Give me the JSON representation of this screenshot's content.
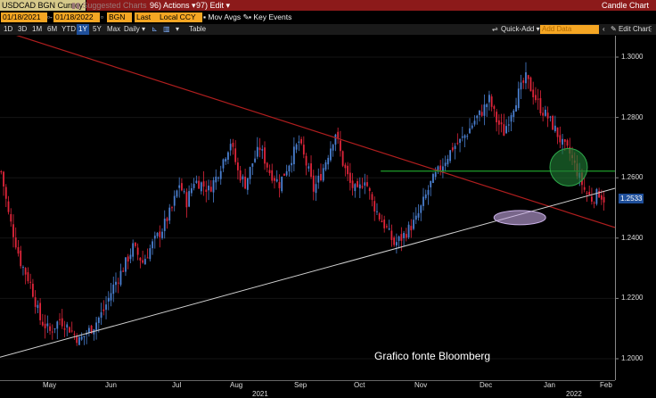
{
  "toolbar": {
    "ticker": "USDCAD BGN Curncy",
    "suggested": "Suggested Charts",
    "actions": "96) Actions ▾",
    "edit": "97) Edit ▾",
    "chart_type": "Candle Chart"
  },
  "controls": {
    "start_date": "01/18/2021",
    "end_date": "01/18/2022",
    "source": "BGN",
    "field": "Last Px",
    "currency": "Local CCY",
    "mov_avgs": "Mov Avgs",
    "key_events": "Key Events"
  },
  "periods": [
    "1D",
    "3D",
    "1M",
    "6M",
    "YTD",
    "1Y",
    "5Y",
    "Max"
  ],
  "period_selected": "1Y",
  "frequency": "Daily ▾",
  "table_label": "Table",
  "quick_add": "Quick-Add ▾",
  "add_data_placeholder": "Add Data",
  "edit_chart": "Edit Chart",
  "credit": "Grafico fonte Bloomberg",
  "colors": {
    "up": "#4a7fd0",
    "down": "#e0253a",
    "resistance": "#b01e1e",
    "support": "#cfcfcf",
    "level": "#1e9e2a"
  },
  "chart_data": {
    "type": "candlestick",
    "x_tick_labels": [
      "May",
      "Jun",
      "Jul",
      "Aug",
      "Sep",
      "Oct",
      "Nov",
      "Dec",
      "Jan",
      "Feb"
    ],
    "year_labels": [
      "2021",
      "2022"
    ],
    "y_ticks": [
      "1.3000",
      "1.2800",
      "1.2600",
      "1.2400",
      "1.2200",
      "1.2000"
    ],
    "ylim": [
      1.1995,
      1.3045
    ],
    "last_price": "1.2533",
    "close_path": [
      [
        0,
        1.262
      ],
      [
        3,
        1.248
      ],
      [
        8,
        1.232
      ],
      [
        12,
        1.225
      ],
      [
        16,
        1.213
      ],
      [
        20,
        1.209
      ],
      [
        24,
        1.213
      ],
      [
        28,
        1.21
      ],
      [
        32,
        1.206
      ],
      [
        38,
        1.211
      ],
      [
        42,
        1.216
      ],
      [
        46,
        1.224
      ],
      [
        50,
        1.23
      ],
      [
        54,
        1.237
      ],
      [
        58,
        1.232
      ],
      [
        62,
        1.238
      ],
      [
        66,
        1.243
      ],
      [
        70,
        1.25
      ],
      [
        73,
        1.258
      ],
      [
        76,
        1.252
      ],
      [
        79,
        1.259
      ],
      [
        82,
        1.258
      ],
      [
        85,
        1.256
      ],
      [
        88,
        1.26
      ],
      [
        91,
        1.266
      ],
      [
        94,
        1.272
      ],
      [
        97,
        1.262
      ],
      [
        100,
        1.258
      ],
      [
        103,
        1.265
      ],
      [
        106,
        1.27
      ],
      [
        110,
        1.262
      ],
      [
        114,
        1.258
      ],
      [
        118,
        1.265
      ],
      [
        122,
        1.272
      ],
      [
        126,
        1.262
      ],
      [
        128,
        1.256
      ],
      [
        131,
        1.261
      ],
      [
        134,
        1.268
      ],
      [
        137,
        1.275
      ],
      [
        140,
        1.265
      ],
      [
        143,
        1.258
      ],
      [
        146,
        1.255
      ],
      [
        149,
        1.26
      ],
      [
        152,
        1.252
      ],
      [
        155,
        1.247
      ],
      [
        158,
        1.243
      ],
      [
        161,
        1.238
      ],
      [
        164,
        1.24
      ],
      [
        167,
        1.243
      ],
      [
        170,
        1.246
      ],
      [
        173,
        1.252
      ],
      [
        176,
        1.258
      ],
      [
        179,
        1.262
      ],
      [
        182,
        1.266
      ],
      [
        185,
        1.27
      ],
      [
        188,
        1.272
      ],
      [
        191,
        1.275
      ],
      [
        194,
        1.279
      ],
      [
        197,
        1.282
      ],
      [
        200,
        1.286
      ],
      [
        203,
        1.279
      ],
      [
        206,
        1.275
      ],
      [
        209,
        1.282
      ],
      [
        212,
        1.288
      ],
      [
        215,
        1.293
      ],
      [
        218,
        1.288
      ],
      [
        221,
        1.283
      ],
      [
        224,
        1.28
      ],
      [
        227,
        1.276
      ],
      [
        230,
        1.271
      ],
      [
        233,
        1.268
      ],
      [
        236,
        1.262
      ],
      [
        239,
        1.256
      ],
      [
        242,
        1.253
      ],
      [
        245,
        1.255
      ],
      [
        247,
        1.253
      ]
    ],
    "annotations": {
      "resistance_line": [
        [
          0,
          1.309
        ],
        [
          252,
          1.2435
        ]
      ],
      "support_line": [
        [
          0,
          1.2005
        ],
        [
          252,
          1.2565
        ]
      ],
      "horizontal_level": 1.2622,
      "green_circle": [
        233,
        1.2635
      ],
      "purple_ellipse": [
        213,
        1.2468
      ]
    }
  }
}
